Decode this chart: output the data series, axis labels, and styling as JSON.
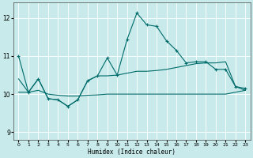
{
  "xlabel": "Humidex (Indice chaleur)",
  "xlim": [
    -0.5,
    23.5
  ],
  "ylim": [
    8.8,
    12.4
  ],
  "yticks": [
    9,
    10,
    11,
    12
  ],
  "xticks": [
    0,
    1,
    2,
    3,
    4,
    5,
    6,
    7,
    8,
    9,
    10,
    11,
    12,
    13,
    14,
    15,
    16,
    17,
    18,
    19,
    20,
    21,
    22,
    23
  ],
  "background_color": "#c8eaea",
  "grid_color": "#b0dede",
  "line_color": "#006b6b",
  "series": [
    {
      "x": [
        0,
        1,
        2,
        3,
        4,
        5,
        6,
        7,
        8,
        9,
        10,
        11,
        12,
        13,
        14,
        15,
        16,
        17,
        18,
        19,
        20,
        21,
        22,
        23
      ],
      "y": [
        11.0,
        10.05,
        10.4,
        9.88,
        9.85,
        9.68,
        9.85,
        10.35,
        10.48,
        10.95,
        10.5,
        11.43,
        12.13,
        11.82,
        11.78,
        11.4,
        11.15,
        10.82,
        10.85,
        10.85,
        10.65,
        10.65,
        10.2,
        10.15
      ],
      "marker": true
    },
    {
      "x": [
        0,
        1,
        2,
        3,
        4,
        5,
        6,
        7,
        8,
        9,
        10,
        11,
        12,
        13,
        14,
        15,
        16,
        17,
        18,
        19,
        20,
        21,
        22,
        23
      ],
      "y": [
        10.4,
        10.05,
        10.4,
        9.88,
        9.85,
        9.68,
        9.85,
        10.35,
        10.48,
        10.48,
        10.5,
        10.55,
        10.6,
        10.6,
        10.62,
        10.65,
        10.7,
        10.75,
        10.8,
        10.82,
        10.82,
        10.85,
        10.2,
        10.1
      ],
      "marker": false
    },
    {
      "x": [
        0,
        1,
        2,
        3,
        4,
        5,
        6,
        7,
        8,
        9,
        10,
        11,
        12,
        13,
        14,
        15,
        16,
        17,
        18,
        19,
        20,
        21,
        22,
        23
      ],
      "y": [
        10.05,
        10.05,
        10.1,
        10.0,
        9.97,
        9.95,
        9.95,
        9.97,
        9.98,
        10.0,
        10.0,
        10.0,
        10.0,
        10.0,
        10.0,
        10.0,
        10.0,
        10.0,
        10.0,
        10.0,
        10.0,
        10.0,
        10.05,
        10.1
      ],
      "marker": false
    }
  ]
}
